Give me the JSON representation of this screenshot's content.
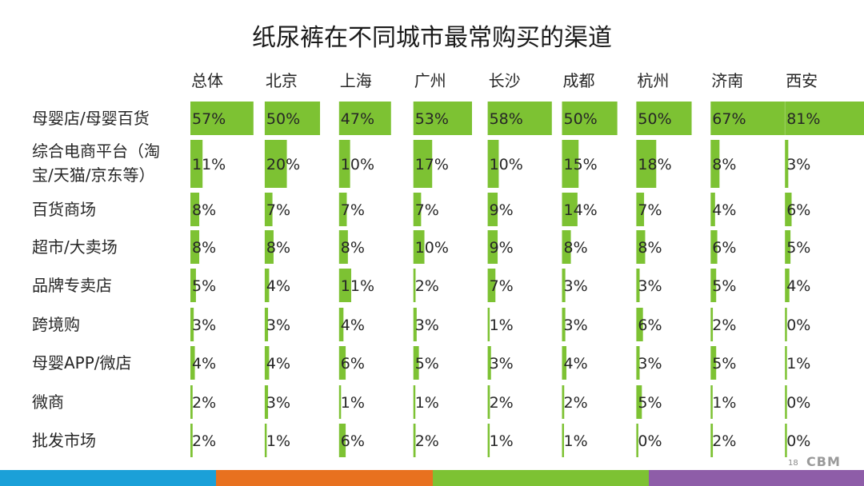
{
  "slide": {
    "page_number": "18",
    "brand": "CBM"
  },
  "colors": {
    "bar": "#7dc233",
    "footer": [
      "#1ba0d8",
      "#e8711f",
      "#7dc233",
      "#8e5da8"
    ]
  },
  "chart_data": {
    "type": "table",
    "title": "纸尿裤在不同城市最常购买的渠道",
    "columns": [
      "总体",
      "北京",
      "上海",
      "广州",
      "长沙",
      "成都",
      "杭州",
      "济南",
      "西安"
    ],
    "rows": [
      {
        "label": [
          "母婴店/母婴百货"
        ],
        "values": [
          57,
          50,
          47,
          53,
          58,
          50,
          50,
          67,
          81
        ]
      },
      {
        "label": [
          "综合电商平台（淘",
          "宝/天猫/京东等）"
        ],
        "values": [
          11,
          20,
          10,
          17,
          10,
          15,
          18,
          8,
          3
        ]
      },
      {
        "label": [
          "百货商场"
        ],
        "values": [
          8,
          7,
          7,
          7,
          9,
          14,
          7,
          4,
          6
        ]
      },
      {
        "label": [
          "超市/大卖场"
        ],
        "values": [
          8,
          8,
          8,
          10,
          9,
          8,
          8,
          6,
          5
        ]
      },
      {
        "label": [
          "品牌专卖店"
        ],
        "values": [
          5,
          4,
          11,
          2,
          7,
          3,
          3,
          5,
          4
        ]
      },
      {
        "label": [
          "跨境购"
        ],
        "values": [
          3,
          3,
          4,
          3,
          1,
          3,
          6,
          2,
          0
        ]
      },
      {
        "label": [
          "母婴APP/微店"
        ],
        "values": [
          4,
          4,
          6,
          5,
          3,
          4,
          3,
          5,
          1
        ]
      },
      {
        "label": [
          "微商"
        ],
        "values": [
          2,
          3,
          1,
          1,
          2,
          2,
          5,
          1,
          0
        ]
      },
      {
        "label": [
          "批发市场"
        ],
        "values": [
          2,
          1,
          6,
          2,
          1,
          1,
          0,
          2,
          0
        ]
      }
    ],
    "value_suffix": "%",
    "value_max": 100
  }
}
